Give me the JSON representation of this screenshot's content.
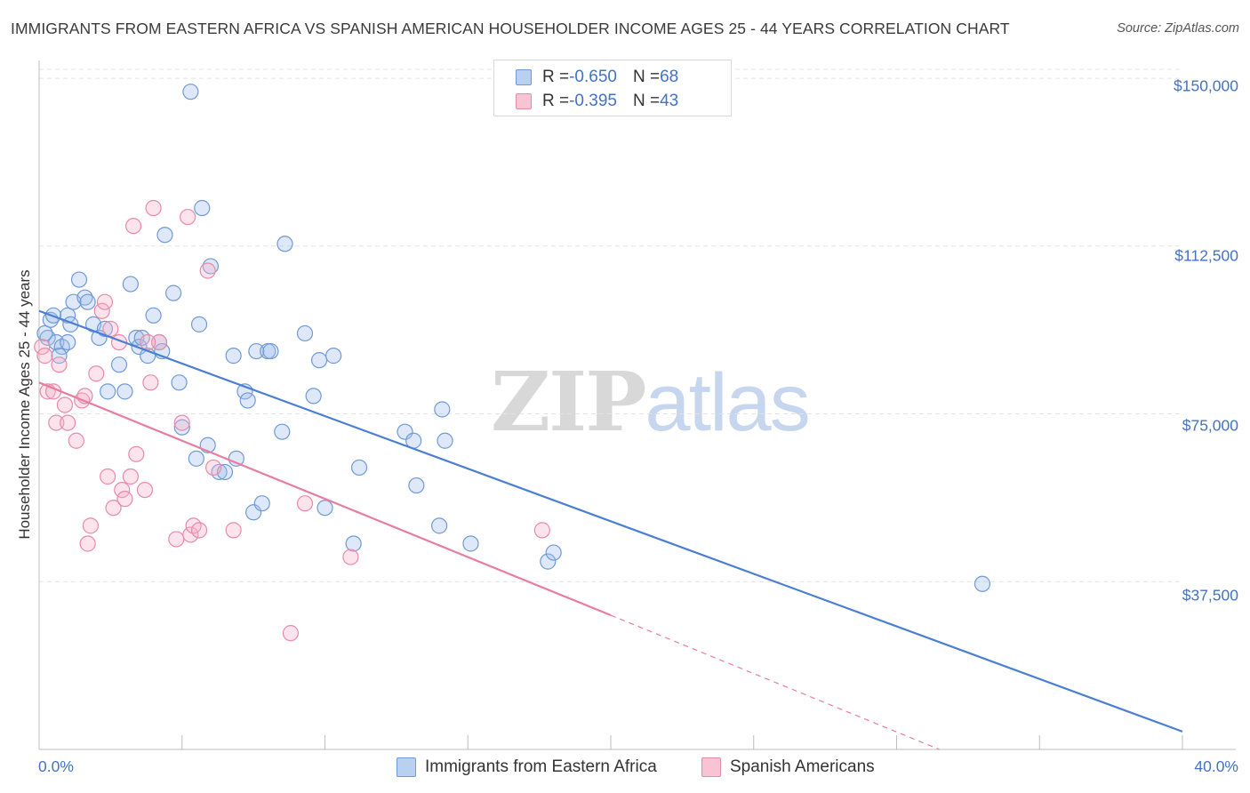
{
  "title": "IMMIGRANTS FROM EASTERN AFRICA VS SPANISH AMERICAN HOUSEHOLDER INCOME AGES 25 - 44 YEARS CORRELATION CHART",
  "source": "Source: ZipAtlas.com",
  "watermark": {
    "zip": "ZIP",
    "atlas": "atlas"
  },
  "stats": [
    {
      "r_label": "R = ",
      "r_value": "-0.650",
      "n_label": "N = ",
      "n_value": "68",
      "color": "#4a7fd4"
    },
    {
      "r_label": "R = ",
      "r_value": "-0.395",
      "n_label": "N = ",
      "n_value": "43",
      "color": "#e87da0"
    }
  ],
  "legend": [
    {
      "label": "Immigrants from Eastern Africa",
      "color": "#4a7fd4"
    },
    {
      "label": "Spanish Americans",
      "color": "#e87da0"
    }
  ],
  "chart_data": {
    "type": "scatter",
    "title": "IMMIGRANTS FROM EASTERN AFRICA VS SPANISH AMERICAN HOUSEHOLDER INCOME AGES 25 - 44 YEARS CORRELATION CHART",
    "xlabel": "",
    "ylabel": "Householder Income Ages 25 - 44 years",
    "xlim": [
      0,
      40
    ],
    "ylim": [
      0,
      152000
    ],
    "x_tick_labels": [
      "0.0%",
      "40.0%"
    ],
    "y_ticks": [
      37500,
      75000,
      112500,
      150000
    ],
    "y_tick_labels": [
      "$37,500",
      "$75,000",
      "$112,500",
      "$150,000"
    ],
    "grid": true,
    "legend_position": "bottom",
    "series": [
      {
        "name": "Immigrants from Eastern Africa",
        "color": "#4a7fd4",
        "trend": {
          "x": [
            0,
            40
          ],
          "y": [
            98000,
            4000
          ]
        },
        "points": [
          [
            0.3,
            92000
          ],
          [
            0.4,
            96000
          ],
          [
            0.5,
            97000
          ],
          [
            0.6,
            91000
          ],
          [
            0.8,
            90000
          ],
          [
            1.0,
            91000
          ],
          [
            1.0,
            97000
          ],
          [
            1.2,
            100000
          ],
          [
            1.4,
            105000
          ],
          [
            1.6,
            101000
          ],
          [
            1.7,
            100000
          ],
          [
            1.9,
            95000
          ],
          [
            2.1,
            92000
          ],
          [
            2.3,
            94000
          ],
          [
            2.4,
            80000
          ],
          [
            2.8,
            86000
          ],
          [
            3.0,
            80000
          ],
          [
            3.2,
            104000
          ],
          [
            3.4,
            92000
          ],
          [
            3.5,
            90000
          ],
          [
            3.6,
            92000
          ],
          [
            3.8,
            88000
          ],
          [
            4.0,
            97000
          ],
          [
            4.2,
            91000
          ],
          [
            4.3,
            89000
          ],
          [
            4.4,
            115000
          ],
          [
            4.7,
            102000
          ],
          [
            4.9,
            82000
          ],
          [
            5.0,
            72000
          ],
          [
            5.3,
            147000
          ],
          [
            5.5,
            65000
          ],
          [
            5.6,
            95000
          ],
          [
            5.7,
            121000
          ],
          [
            5.9,
            68000
          ],
          [
            6.0,
            108000
          ],
          [
            6.3,
            62000
          ],
          [
            6.5,
            62000
          ],
          [
            6.8,
            88000
          ],
          [
            6.9,
            65000
          ],
          [
            7.2,
            80000
          ],
          [
            7.3,
            78000
          ],
          [
            7.5,
            53000
          ],
          [
            7.6,
            89000
          ],
          [
            7.8,
            55000
          ],
          [
            8.0,
            89000
          ],
          [
            8.1,
            89000
          ],
          [
            8.5,
            71000
          ],
          [
            8.6,
            113000
          ],
          [
            9.3,
            93000
          ],
          [
            9.6,
            79000
          ],
          [
            9.8,
            87000
          ],
          [
            10.0,
            54000
          ],
          [
            10.3,
            88000
          ],
          [
            11.0,
            46000
          ],
          [
            11.2,
            63000
          ],
          [
            12.8,
            71000
          ],
          [
            13.1,
            69000
          ],
          [
            13.2,
            59000
          ],
          [
            14.0,
            50000
          ],
          [
            14.1,
            76000
          ],
          [
            14.2,
            69000
          ],
          [
            15.1,
            46000
          ],
          [
            17.8,
            42000
          ],
          [
            18.0,
            44000
          ],
          [
            33.0,
            37000
          ],
          [
            0.2,
            93000
          ],
          [
            0.7,
            88000
          ],
          [
            1.1,
            95000
          ]
        ]
      },
      {
        "name": "Spanish Americans",
        "color": "#e87da0",
        "trend": {
          "x": [
            0,
            20
          ],
          "y": [
            82000,
            30000
          ],
          "dashed_to": {
            "x": 31.5,
            "y": 0
          }
        },
        "points": [
          [
            0.1,
            90000
          ],
          [
            0.3,
            80000
          ],
          [
            0.5,
            80000
          ],
          [
            0.6,
            73000
          ],
          [
            0.7,
            86000
          ],
          [
            0.9,
            77000
          ],
          [
            1.0,
            73000
          ],
          [
            1.3,
            69000
          ],
          [
            1.5,
            78000
          ],
          [
            1.6,
            79000
          ],
          [
            1.7,
            46000
          ],
          [
            1.8,
            50000
          ],
          [
            2.0,
            84000
          ],
          [
            2.2,
            98000
          ],
          [
            2.3,
            100000
          ],
          [
            2.4,
            61000
          ],
          [
            2.6,
            54000
          ],
          [
            2.8,
            91000
          ],
          [
            2.9,
            58000
          ],
          [
            3.0,
            56000
          ],
          [
            3.2,
            61000
          ],
          [
            3.3,
            117000
          ],
          [
            3.4,
            66000
          ],
          [
            3.7,
            58000
          ],
          [
            3.9,
            82000
          ],
          [
            4.0,
            121000
          ],
          [
            4.2,
            91000
          ],
          [
            4.8,
            47000
          ],
          [
            5.0,
            73000
          ],
          [
            5.2,
            119000
          ],
          [
            5.3,
            48000
          ],
          [
            5.4,
            50000
          ],
          [
            5.6,
            49000
          ],
          [
            5.9,
            107000
          ],
          [
            6.1,
            63000
          ],
          [
            6.8,
            49000
          ],
          [
            8.8,
            26000
          ],
          [
            9.3,
            55000
          ],
          [
            10.9,
            43000
          ],
          [
            17.6,
            49000
          ],
          [
            3.8,
            91000
          ],
          [
            2.5,
            94000
          ],
          [
            0.2,
            88000
          ]
        ]
      }
    ]
  }
}
